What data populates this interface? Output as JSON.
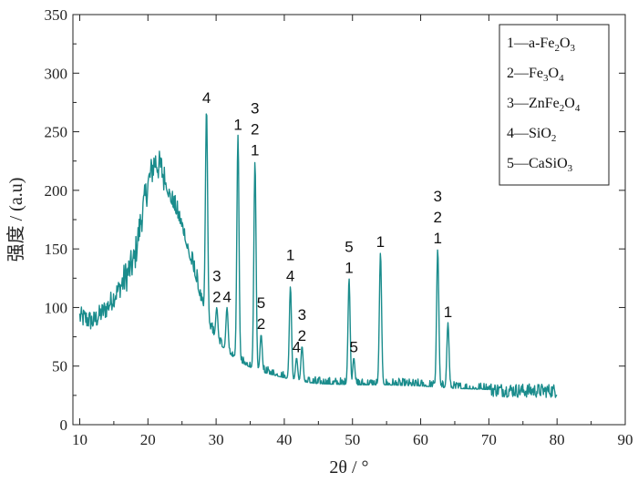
{
  "chart_data": {
    "type": "line",
    "title": "",
    "xlabel": "2θ / °",
    "ylabel": "强度 / (a.u)",
    "xlim": [
      9,
      90
    ],
    "ylim": [
      0,
      350
    ],
    "xticks": [
      10,
      20,
      30,
      40,
      50,
      60,
      70,
      80,
      90
    ],
    "yticks": [
      0,
      50,
      100,
      150,
      200,
      250,
      300,
      350
    ],
    "line_color": "#1a8c8c",
    "grid": false,
    "legend_position": "top-right",
    "legend": [
      {
        "parts": [
          [
            "1—a-Fe",
            ""
          ],
          [
            "2",
            "sub"
          ],
          [
            "O",
            ""
          ],
          [
            "3",
            "sub"
          ]
        ]
      },
      {
        "parts": [
          [
            "2—Fe",
            ""
          ],
          [
            "3",
            "sub"
          ],
          [
            "O",
            ""
          ],
          [
            "4",
            "sub"
          ]
        ]
      },
      {
        "parts": [
          [
            "3—ZnFe",
            ""
          ],
          [
            "2",
            "sub"
          ],
          [
            "O",
            ""
          ],
          [
            "4",
            "sub"
          ]
        ]
      },
      {
        "parts": [
          [
            "4—SiO",
            ""
          ],
          [
            "2",
            "sub"
          ]
        ]
      },
      {
        "parts": [
          [
            "5—CaSiO",
            ""
          ],
          [
            "3",
            "sub"
          ]
        ]
      }
    ],
    "baseline": [
      [
        10,
        92
      ],
      [
        12,
        88
      ],
      [
        14,
        100
      ],
      [
        16,
        118
      ],
      [
        18,
        140
      ],
      [
        19,
        175
      ],
      [
        20,
        205
      ],
      [
        21,
        225
      ],
      [
        22,
        218
      ],
      [
        23,
        195
      ],
      [
        24,
        182
      ],
      [
        25,
        168
      ],
      [
        26,
        145
      ],
      [
        27,
        125
      ],
      [
        28,
        100
      ],
      [
        29,
        84
      ],
      [
        30,
        72
      ],
      [
        32,
        60
      ],
      [
        34,
        52
      ],
      [
        36,
        46
      ],
      [
        38,
        43
      ],
      [
        40,
        40
      ],
      [
        42,
        37
      ],
      [
        45,
        35
      ],
      [
        50,
        34
      ],
      [
        55,
        34
      ],
      [
        60,
        33
      ],
      [
        65,
        31
      ],
      [
        70,
        30
      ],
      [
        75,
        29
      ],
      [
        80,
        29
      ]
    ],
    "peaks": [
      {
        "x": 28.6,
        "y": 270,
        "labels": [
          "4"
        ]
      },
      {
        "x": 33.2,
        "y": 247,
        "labels": [
          "1"
        ]
      },
      {
        "x": 35.7,
        "y": 225,
        "labels": [
          "3",
          "2",
          "1"
        ]
      },
      {
        "x": 40.9,
        "y": 118,
        "labels": [
          "1",
          "4"
        ]
      },
      {
        "x": 49.5,
        "y": 125,
        "labels": [
          "5",
          "1"
        ]
      },
      {
        "x": 54.1,
        "y": 147,
        "labels": [
          "1"
        ]
      },
      {
        "x": 62.5,
        "y": 150,
        "labels": [
          "3",
          "2",
          "1"
        ]
      },
      {
        "x": 64.0,
        "y": 87,
        "labels": [
          "1"
        ]
      },
      {
        "x": 30.1,
        "y": 100,
        "labels": [
          "3",
          "2"
        ]
      },
      {
        "x": 31.6,
        "y": 100,
        "labels": [
          "4"
        ]
      },
      {
        "x": 36.6,
        "y": 77,
        "labels": [
          "5",
          "2"
        ]
      },
      {
        "x": 42.6,
        "y": 67,
        "labels": [
          "3",
          "2"
        ]
      },
      {
        "x": 41.8,
        "y": 57,
        "labels": [
          "4"
        ]
      },
      {
        "x": 50.2,
        "y": 57,
        "labels": [
          "5"
        ]
      }
    ]
  }
}
